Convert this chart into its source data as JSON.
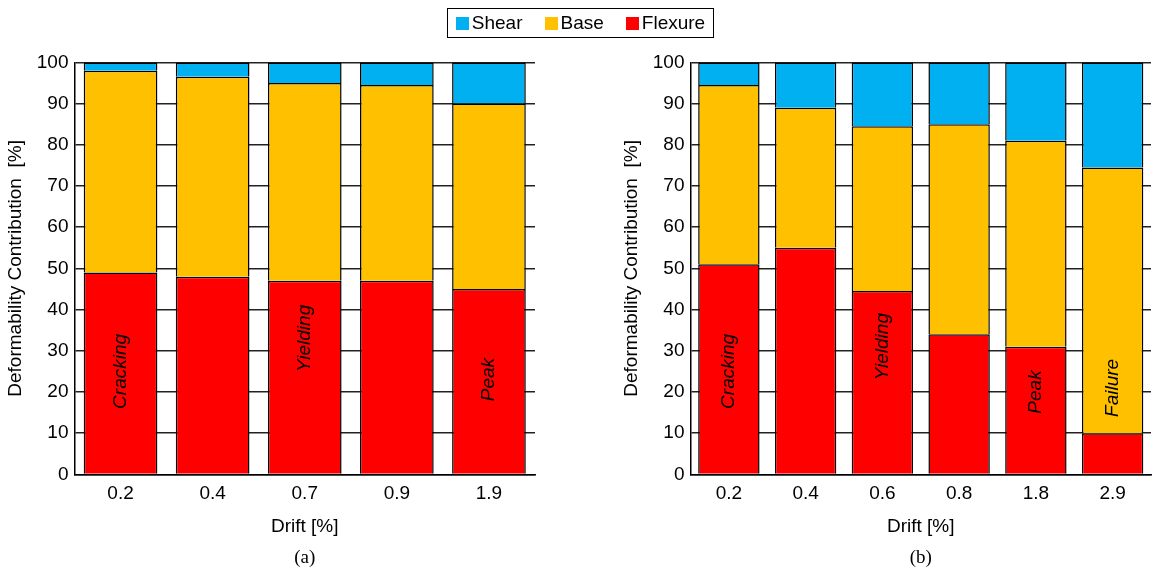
{
  "chart_data": [
    {
      "type": "bar",
      "stacked": true,
      "legend": "top",
      "grid": "y",
      "xlabel": "Drift [%]",
      "ylabel": "Deformability Contribution  [%]",
      "categories": [
        "0.2",
        "0.4",
        "0.7",
        "0.9",
        "1.9"
      ],
      "ylim": [
        0,
        100
      ],
      "yticks": [
        0,
        10,
        20,
        30,
        40,
        50,
        60,
        70,
        80,
        90,
        100
      ],
      "series": [
        {
          "name": "Flexure",
          "color": "#ff0000",
          "values": [
            49,
            48,
            47,
            47,
            45
          ]
        },
        {
          "name": "Base",
          "color": "#ffc000",
          "values": [
            49,
            48.5,
            48,
            47.5,
            45
          ]
        },
        {
          "name": "Shear",
          "color": "#00b0f0",
          "values": [
            2,
            3.5,
            5,
            5.5,
            10
          ]
        }
      ],
      "annotations": [
        "Cracking",
        "Yielding",
        "Peak",
        "(a)"
      ]
    },
    {
      "type": "bar",
      "stacked": true,
      "grid": "y",
      "xlabel": "Drift [%]",
      "ylabel": "Deformability Contribution  [%]",
      "categories": [
        "0.2",
        "0.4",
        "0.6",
        "0.8",
        "1.8",
        "2.9"
      ],
      "ylim": [
        0,
        100
      ],
      "yticks": [
        0,
        10,
        20,
        30,
        40,
        50,
        60,
        70,
        80,
        90,
        100
      ],
      "series": [
        {
          "color": "#ff0000",
          "values": [
            51,
            55,
            44.5,
            34,
            31,
            10
          ]
        },
        {
          "color": "#ffc000",
          "values": [
            43.5,
            34,
            40,
            51,
            50,
            64.5
          ]
        },
        {
          "color": "#00b0f0",
          "values": [
            5.5,
            11,
            15.5,
            15,
            19,
            25.5
          ]
        }
      ],
      "annotations": [
        "Cracking",
        "Yielding",
        "Peak",
        "Failure",
        "(b)"
      ]
    }
  ]
}
